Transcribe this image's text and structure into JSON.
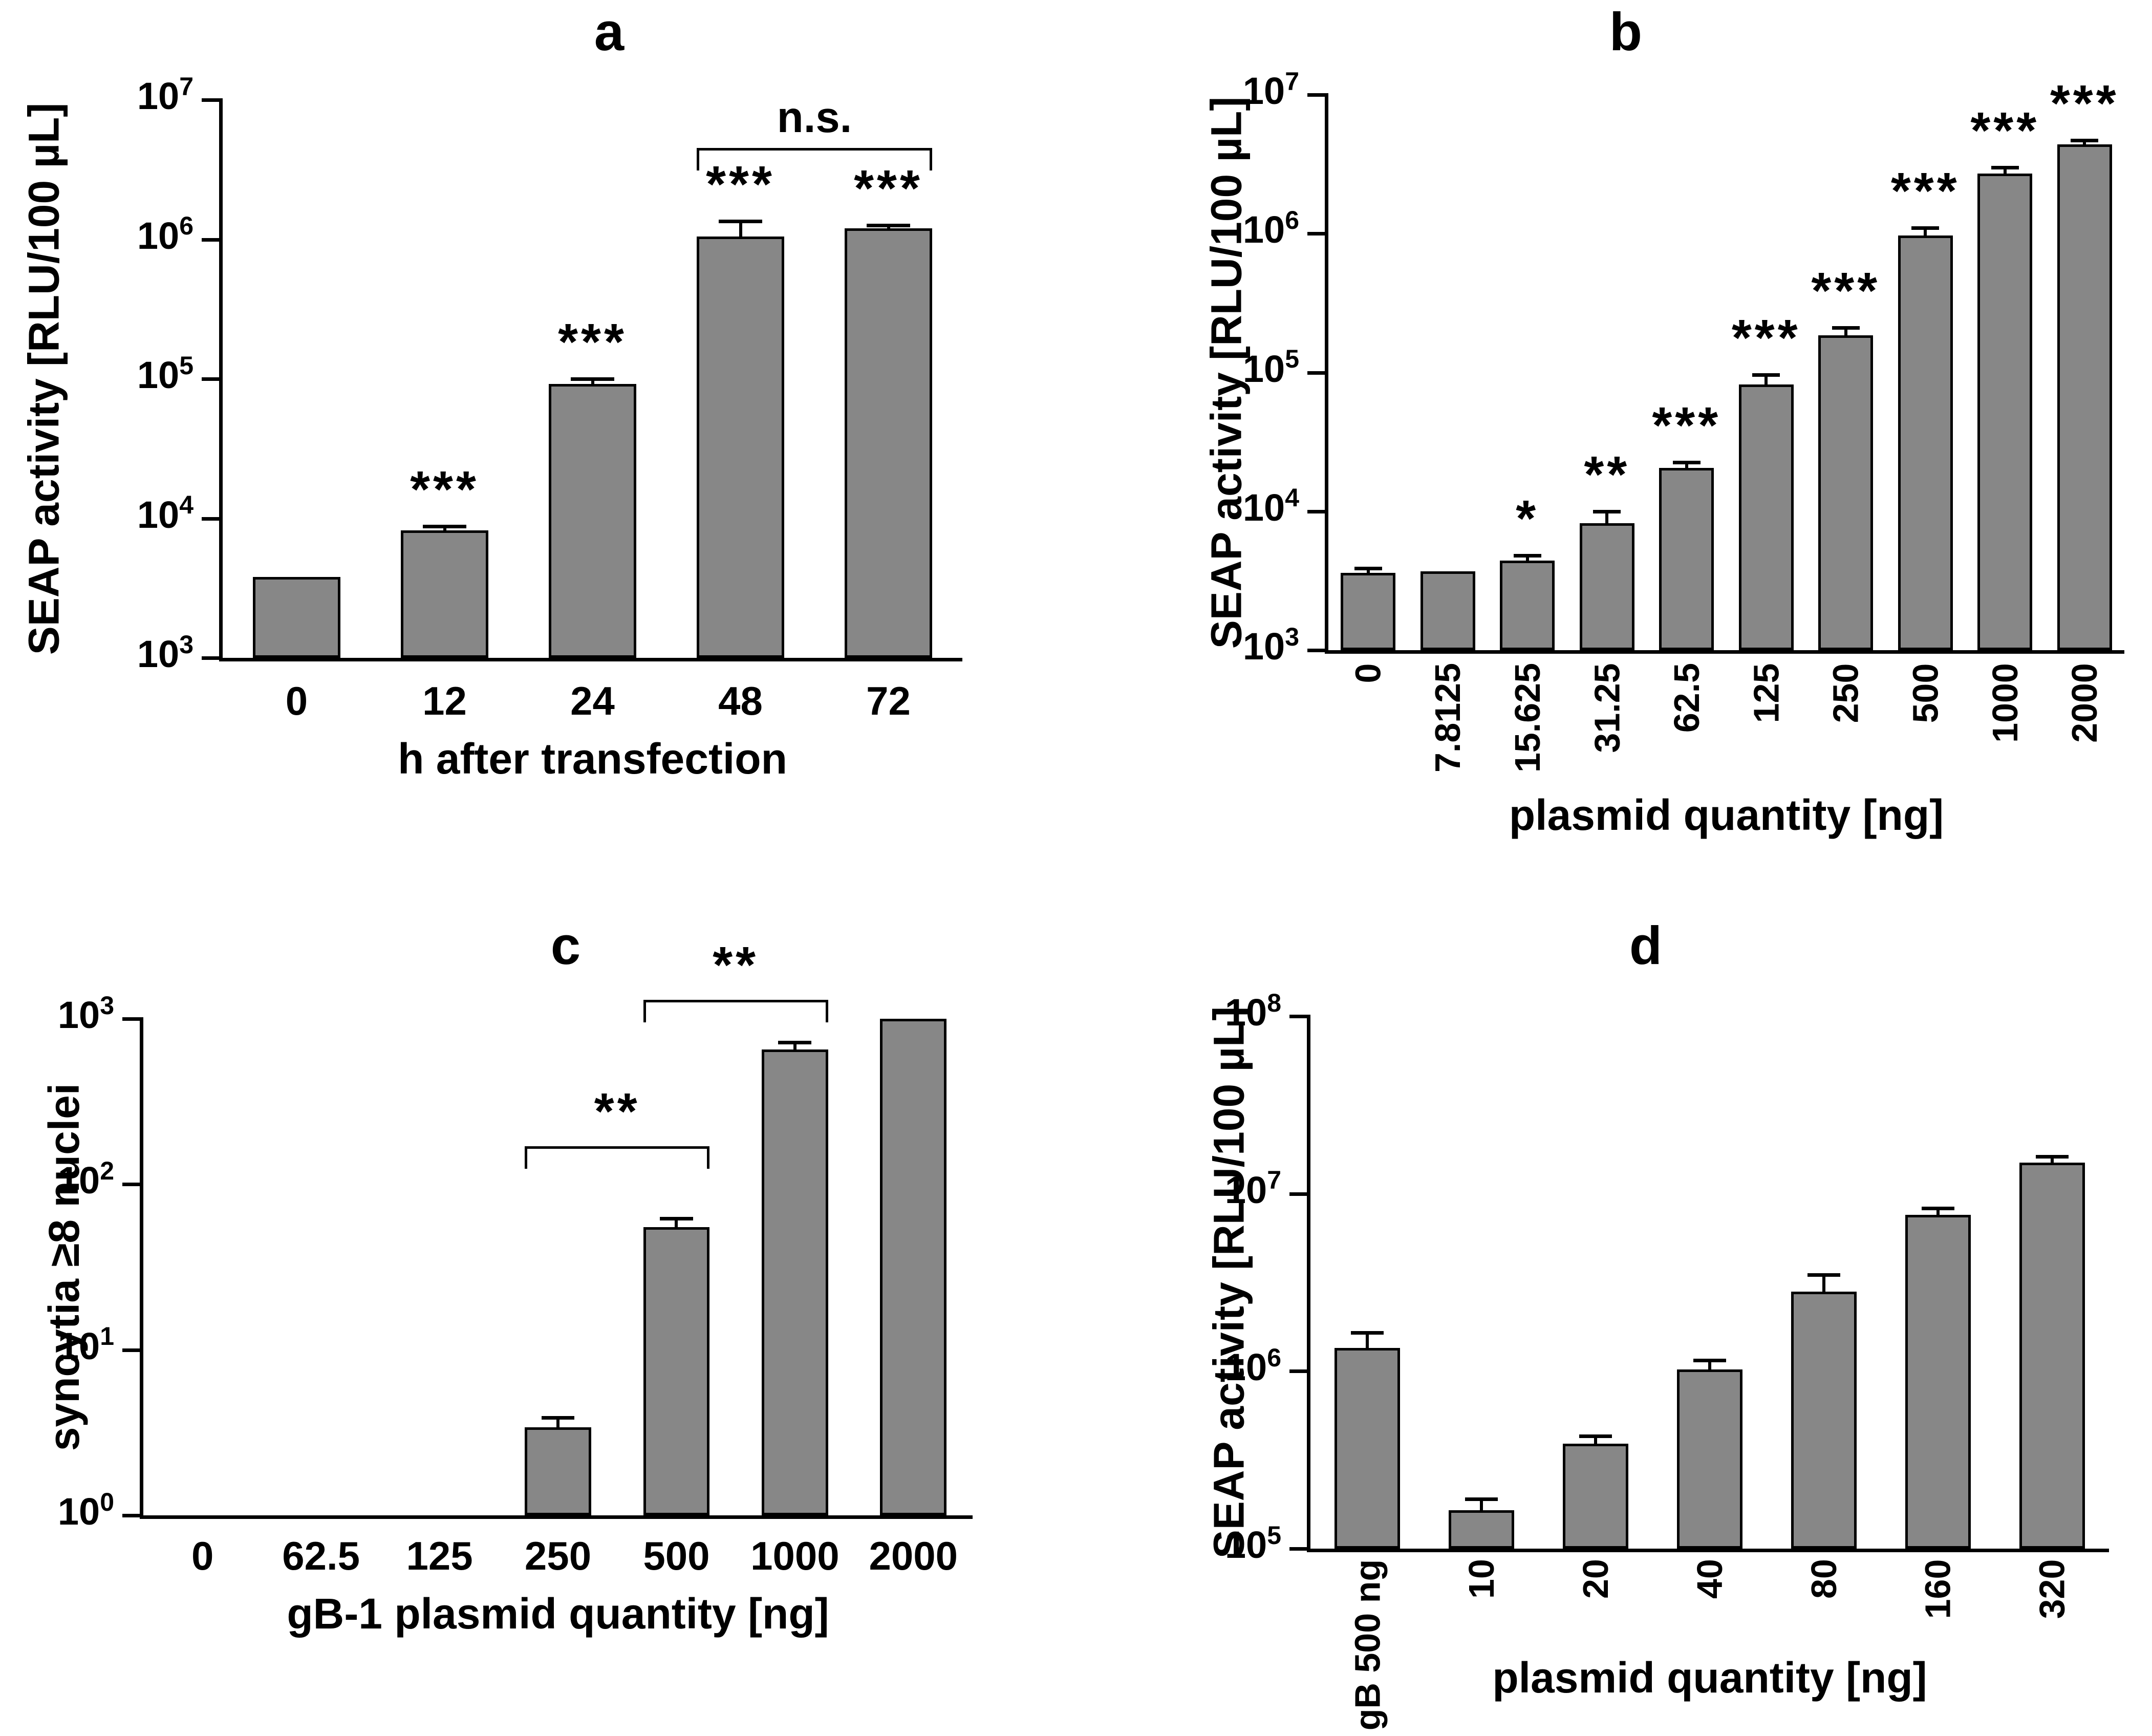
{
  "figure": {
    "background": "#ffffff",
    "bar_fill": "#878787",
    "bar_border": "#000000",
    "axis_color": "#000000",
    "text_color": "#000000"
  },
  "chart_data": [
    {
      "id": "a",
      "panel": "a",
      "type": "bar",
      "ylabel": "SEAP activity [RLU/100 µL]",
      "xlabel": "h after transfection",
      "yscale": "log",
      "ylim": [
        1000,
        10000000
      ],
      "ytick_exponents": [
        3,
        4,
        5,
        6,
        7
      ],
      "categories": [
        "0",
        "12",
        "24",
        "48",
        "72"
      ],
      "values": [
        3800,
        8200,
        92000,
        1050000,
        1200000
      ],
      "error_top": [
        null,
        8800,
        100000,
        1350000,
        1260000
      ],
      "significance": [
        null,
        "***",
        "***",
        "***",
        "***"
      ],
      "brackets": [
        {
          "from": 3,
          "to": 4,
          "level": 4500000,
          "label": "n.s."
        }
      ],
      "xtick_rotation": "horizontal",
      "grid": false,
      "legend": null
    },
    {
      "id": "b",
      "panel": "b",
      "type": "bar",
      "ylabel": "SEAP activity [RLU/100 µL]",
      "xlabel": "plasmid quantity [ng]",
      "yscale": "log",
      "ylim": [
        1000,
        10000000
      ],
      "ytick_exponents": [
        3,
        4,
        5,
        6,
        7
      ],
      "categories": [
        "0",
        "7.8125",
        "15.625",
        "31.25",
        "62.5",
        "125",
        "250",
        "500",
        "1000",
        "2000"
      ],
      "values": [
        3600,
        3700,
        4400,
        8200,
        20500,
        82000,
        185000,
        970000,
        2700000,
        4400000
      ],
      "error_top": [
        3900,
        null,
        4800,
        10000,
        22500,
        96000,
        210000,
        1100000,
        3000000,
        4700000
      ],
      "significance": [
        null,
        null,
        "*",
        "**",
        "***",
        "***",
        "***",
        "***",
        "***",
        "***"
      ],
      "brackets": [],
      "xtick_rotation": "vertical",
      "grid": false,
      "legend": null
    },
    {
      "id": "c",
      "panel": "c",
      "type": "bar",
      "ylabel": "syncytia ≥8 nuclei",
      "xlabel": "gB-1 plasmid quantity [ng]",
      "yscale": "log",
      "ylim": [
        1,
        1000
      ],
      "ytick_exponents": [
        0,
        1,
        2,
        3
      ],
      "categories": [
        "0",
        "62.5",
        "125",
        "250",
        "500",
        "1000",
        "2000"
      ],
      "values": [
        null,
        null,
        null,
        3.4,
        55,
        650,
        1000
      ],
      "error_top": [
        null,
        null,
        null,
        3.9,
        62,
        720,
        null
      ],
      "significance": [
        null,
        null,
        null,
        null,
        null,
        null,
        null
      ],
      "brackets": [
        {
          "from": 3,
          "to": 4,
          "level": 170,
          "label": "**"
        },
        {
          "from": 4,
          "to": 5,
          "level": 1300,
          "label": "**"
        }
      ],
      "xtick_rotation": "horizontal",
      "grid": false,
      "legend": null
    },
    {
      "id": "d",
      "panel": "d",
      "type": "bar",
      "ylabel": "SEAP activity [RLU/100 µL]",
      "xlabel": "plasmid quantity [ng]",
      "yscale": "log",
      "ylim": [
        100000,
        100000000
      ],
      "ytick_exponents": [
        5,
        6,
        7,
        8
      ],
      "categories": [
        "gB 500 ng",
        "10",
        "20",
        "40",
        "80",
        "160",
        "320"
      ],
      "values": [
        1350000,
        165000,
        390000,
        1020000,
        2800000,
        7600000,
        15000000
      ],
      "error_top": [
        1650000,
        190000,
        430000,
        1150000,
        3500000,
        8300000,
        16200000
      ],
      "significance": [
        null,
        null,
        null,
        null,
        null,
        null,
        null
      ],
      "brackets": [],
      "xtick_rotation": "vertical",
      "grid": false,
      "legend": null
    }
  ]
}
